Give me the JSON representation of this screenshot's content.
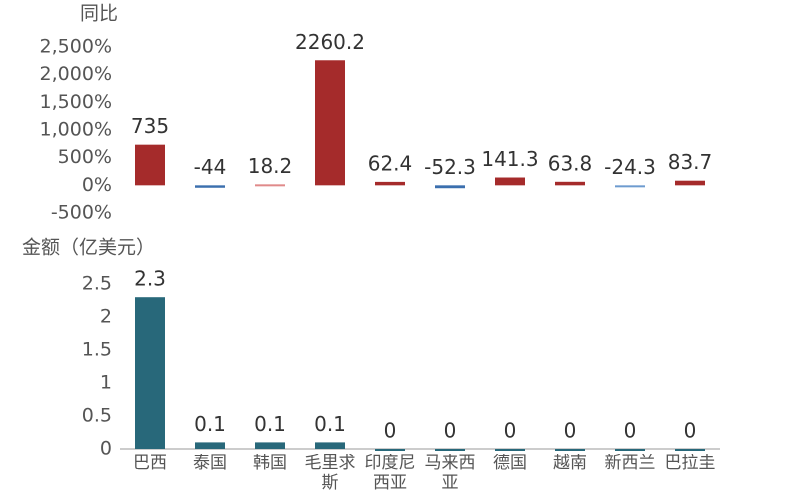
{
  "chart_data": [
    {
      "type": "bar",
      "y_label": "同比",
      "categories": [
        "巴西",
        "泰国",
        "韩国",
        "毛里求斯",
        "印度尼西亚",
        "马来西亚",
        "德国",
        "越南",
        "新西兰",
        "巴拉圭"
      ],
      "values": [
        735,
        -44,
        18.2,
        2260.2,
        62.4,
        -52.3,
        141.3,
        63.8,
        -24.3,
        83.7
      ],
      "colors": [
        "#a52b2b",
        "#3b6fae",
        "#e08a8a",
        "#a52b2b",
        "#a52b2b",
        "#3b6fae",
        "#a52b2b",
        "#a52b2b",
        "#6d9bcf",
        "#a52b2b"
      ],
      "ylim": [
        -500,
        2500
      ],
      "yticks": [
        {
          "value": -500,
          "label": "-500%"
        },
        {
          "value": 0,
          "label": "0%"
        },
        {
          "value": 500,
          "label": "500%"
        },
        {
          "value": 1000,
          "label": "1,000%"
        },
        {
          "value": 1500,
          "label": "1,500%"
        },
        {
          "value": 2000,
          "label": "2,000%"
        },
        {
          "value": 2500,
          "label": "2,500%"
        }
      ]
    },
    {
      "type": "bar",
      "y_label": "金额（亿美元）",
      "categories": [
        "巴西",
        "泰国",
        "韩国",
        "毛里求斯",
        "印度尼西亚",
        "马来西亚",
        "德国",
        "越南",
        "新西兰",
        "巴拉圭"
      ],
      "values": [
        2.3,
        0.1,
        0.1,
        0.1,
        0,
        0,
        0,
        0,
        0,
        0
      ],
      "color": "#28687a",
      "ylim": [
        0,
        2.5
      ],
      "yticks": [
        0,
        0.5,
        1,
        1.5,
        2,
        2.5
      ]
    }
  ]
}
